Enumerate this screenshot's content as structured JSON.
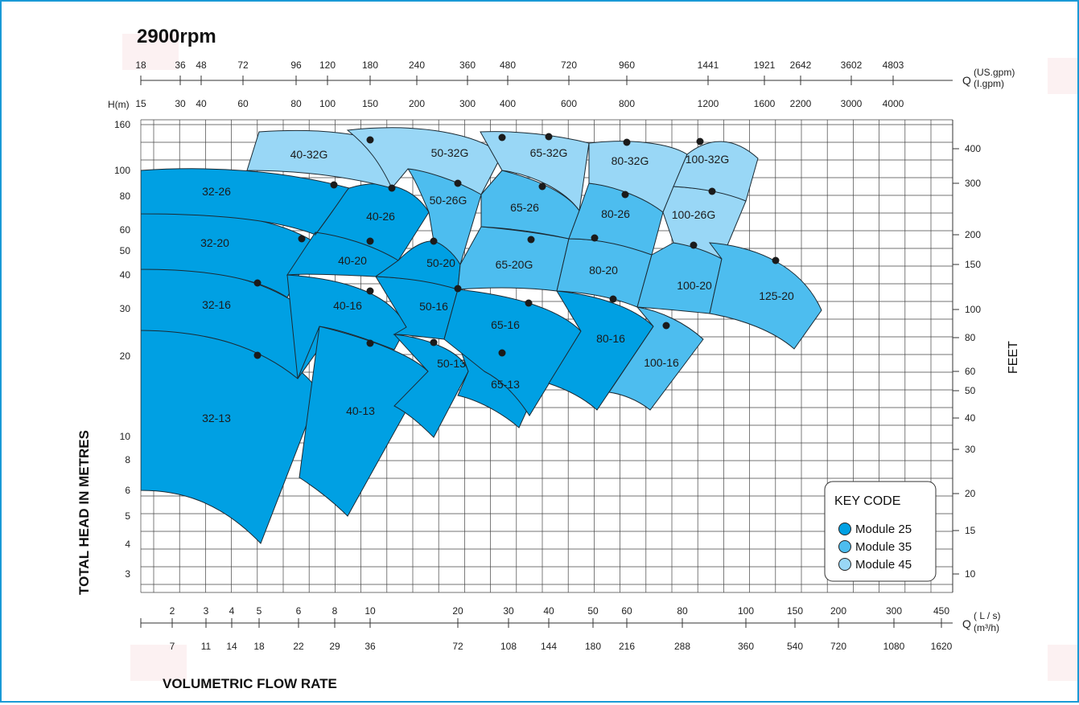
{
  "chart_data": {
    "type": "area",
    "title": "2900rpm",
    "xlabel": "VOLUMETRIC  FLOW RATE",
    "ylabel": "TOTAL HEAD IN METRES",
    "y2label": "FEET",
    "y_unit_label": "H(m)",
    "scale": "log-log",
    "x_ticks_ls": [
      "2",
      "3",
      "4",
      "5",
      "6",
      "8",
      "10",
      "20",
      "30",
      "40",
      "50",
      "60",
      "80",
      "100",
      "150",
      "200",
      "300",
      "450"
    ],
    "x_ticks_m3h": [
      "7",
      "11",
      "14",
      "18",
      "22",
      "29",
      "36",
      "72",
      "108",
      "144",
      "180",
      "216",
      "288",
      "360",
      "540",
      "720",
      "1080",
      "1620"
    ],
    "x_ticks_usgpm": [
      "18",
      "36",
      "48",
      "72",
      "96",
      "120",
      "180",
      "240",
      "360",
      "480",
      "720",
      "960",
      "1441",
      "1921",
      "2642",
      "3602",
      "4803"
    ],
    "x_ticks_lgpm": [
      "15",
      "30",
      "40",
      "60",
      "80",
      "100",
      "150",
      "200",
      "300",
      "400",
      "600",
      "800",
      "1200",
      "1600",
      "2200",
      "3000",
      "4000"
    ],
    "y_ticks_m": [
      "160",
      "100",
      "80",
      "60",
      "50",
      "40",
      "30",
      "20",
      "10",
      "8",
      "6",
      "5",
      "4",
      "3"
    ],
    "y_ticks_feet": [
      "400",
      "300",
      "200",
      "150",
      "100",
      "80",
      "60",
      "50",
      "40",
      "30",
      "20",
      "15",
      "10"
    ],
    "bottom_q_label": "Q",
    "bottom_unit_top": "( L / s)",
    "bottom_unit_bottom": "(m³/h)",
    "top_q_label": "Q",
    "top_unit_top": "(US.gpm)",
    "top_unit_bottom": "(I.gpm)",
    "legend": {
      "title": "KEY  CODE",
      "items": [
        {
          "label": "Module  25",
          "color": "#00a0e3"
        },
        {
          "label": "Module  35",
          "color": "#4dbdef"
        },
        {
          "label": "Module  45",
          "color": "#99d7f6"
        }
      ],
      "placement": "bottom-right"
    },
    "series": [
      {
        "name": "32-13",
        "module": 25
      },
      {
        "name": "32-16",
        "module": 25
      },
      {
        "name": "32-20",
        "module": 25
      },
      {
        "name": "32-26",
        "module": 25
      },
      {
        "name": "40-13",
        "module": 25
      },
      {
        "name": "40-16",
        "module": 25
      },
      {
        "name": "40-20",
        "module": 25
      },
      {
        "name": "40-26",
        "module": 25
      },
      {
        "name": "40-32G",
        "module": 45
      },
      {
        "name": "50-13",
        "module": 25
      },
      {
        "name": "50-16",
        "module": 25
      },
      {
        "name": "50-20",
        "module": 25
      },
      {
        "name": "50-26G",
        "module": 35
      },
      {
        "name": "50-32G",
        "module": 45
      },
      {
        "name": "65-13",
        "module": 25
      },
      {
        "name": "65-16",
        "module": 25
      },
      {
        "name": "65-20G",
        "module": 35
      },
      {
        "name": "65-26",
        "module": 35
      },
      {
        "name": "65-32G",
        "module": 45
      },
      {
        "name": "80-16",
        "module": 25
      },
      {
        "name": "80-20",
        "module": 35
      },
      {
        "name": "80-26",
        "module": 35
      },
      {
        "name": "80-32G",
        "module": 45
      },
      {
        "name": "100-16",
        "module": 35
      },
      {
        "name": "100-20",
        "module": 35
      },
      {
        "name": "100-26G",
        "module": 45
      },
      {
        "name": "100-32G",
        "module": 45
      },
      {
        "name": "125-20",
        "module": 35
      }
    ]
  }
}
